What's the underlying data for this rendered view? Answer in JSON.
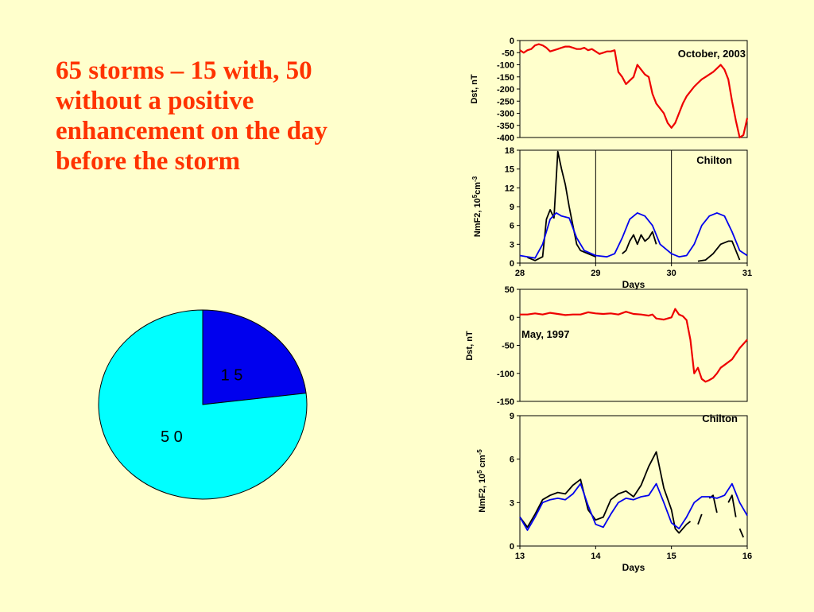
{
  "slide": {
    "headline": "65 storms – 15 with, 50 without a positive enhancement on the day before the storm",
    "colors": {
      "background": "#ffffcc",
      "headline": "#ff3300"
    }
  },
  "chart_data": [
    {
      "type": "pie",
      "labels": [
        "15",
        "50"
      ],
      "values": [
        15,
        50
      ],
      "display_labels": [
        "1 5",
        "5 0"
      ],
      "colors": [
        "#0000ee",
        "#00ffff"
      ]
    },
    {
      "type": "line",
      "title": "October, 2003",
      "xlabel": "",
      "ylabel": "Dst, nT",
      "xlim": [
        28,
        31
      ],
      "ylim": [
        -400,
        0
      ],
      "yticks": [
        0,
        -50,
        -100,
        -150,
        -200,
        -250,
        -300,
        -350,
        -400
      ],
      "series": [
        {
          "color": "#ee0000",
          "points": [
            [
              28.0,
              -40
            ],
            [
              28.05,
              -50
            ],
            [
              28.1,
              -40
            ],
            [
              28.15,
              -35
            ],
            [
              28.2,
              -20
            ],
            [
              28.25,
              -15
            ],
            [
              28.3,
              -20
            ],
            [
              28.35,
              -30
            ],
            [
              28.4,
              -45
            ],
            [
              28.45,
              -40
            ],
            [
              28.5,
              -35
            ],
            [
              28.55,
              -30
            ],
            [
              28.6,
              -25
            ],
            [
              28.65,
              -25
            ],
            [
              28.7,
              -30
            ],
            [
              28.75,
              -35
            ],
            [
              28.8,
              -35
            ],
            [
              28.85,
              -30
            ],
            [
              28.9,
              -40
            ],
            [
              28.95,
              -35
            ],
            [
              29.0,
              -45
            ],
            [
              29.05,
              -55
            ],
            [
              29.1,
              -50
            ],
            [
              29.15,
              -45
            ],
            [
              29.2,
              -45
            ],
            [
              29.25,
              -40
            ],
            [
              29.3,
              -130
            ],
            [
              29.35,
              -150
            ],
            [
              29.4,
              -180
            ],
            [
              29.45,
              -165
            ],
            [
              29.5,
              -150
            ],
            [
              29.55,
              -100
            ],
            [
              29.6,
              -120
            ],
            [
              29.65,
              -140
            ],
            [
              29.7,
              -150
            ],
            [
              29.75,
              -220
            ],
            [
              29.8,
              -260
            ],
            [
              29.85,
              -280
            ],
            [
              29.9,
              -300
            ],
            [
              29.95,
              -340
            ],
            [
              30.0,
              -360
            ],
            [
              30.05,
              -340
            ],
            [
              30.1,
              -300
            ],
            [
              30.15,
              -260
            ],
            [
              30.2,
              -230
            ],
            [
              30.25,
              -210
            ],
            [
              30.3,
              -190
            ],
            [
              30.35,
              -175
            ],
            [
              30.4,
              -160
            ],
            [
              30.45,
              -150
            ],
            [
              30.5,
              -140
            ],
            [
              30.55,
              -130
            ],
            [
              30.6,
              -115
            ],
            [
              30.65,
              -100
            ],
            [
              30.7,
              -120
            ],
            [
              30.75,
              -160
            ],
            [
              30.8,
              -250
            ],
            [
              30.85,
              -330
            ],
            [
              30.9,
              -400
            ],
            [
              30.95,
              -390
            ],
            [
              31.0,
              -320
            ]
          ]
        }
      ]
    },
    {
      "type": "line",
      "title": "Chilton",
      "xlabel": "Days",
      "ylabel": "NmF2, 10^5 cm^-3",
      "xlim": [
        28,
        31
      ],
      "ylim": [
        0,
        18
      ],
      "xticks": [
        28,
        29,
        30,
        31
      ],
      "yticks": [
        0,
        3,
        6,
        9,
        12,
        15,
        18
      ],
      "day_dividers": [
        29,
        30
      ],
      "series": [
        {
          "color": "#000000",
          "segments": [
            [
              [
                28.1,
                0.9
              ],
              [
                28.2,
                0.4
              ],
              [
                28.3,
                1.0
              ],
              [
                28.35,
                7.0
              ],
              [
                28.4,
                8.5
              ],
              [
                28.45,
                7.2
              ],
              [
                28.5,
                17.8
              ],
              [
                28.55,
                15.0
              ],
              [
                28.6,
                12.5
              ],
              [
                28.65,
                9.0
              ],
              [
                28.7,
                6.0
              ],
              [
                28.75,
                3.0
              ],
              [
                28.8,
                2.0
              ],
              [
                28.9,
                1.5
              ],
              [
                29.0,
                1.0
              ]
            ],
            [
              [
                29.35,
                1.5
              ],
              [
                29.4,
                2.0
              ],
              [
                29.45,
                3.5
              ],
              [
                29.5,
                4.5
              ],
              [
                29.55,
                3.0
              ],
              [
                29.6,
                4.5
              ],
              [
                29.65,
                3.5
              ],
              [
                29.7,
                4.0
              ],
              [
                29.75,
                5.0
              ],
              [
                29.8,
                3.0
              ]
            ],
            [
              [
                30.35,
                0.3
              ],
              [
                30.45,
                0.5
              ],
              [
                30.55,
                1.5
              ],
              [
                30.65,
                3.0
              ],
              [
                30.75,
                3.5
              ],
              [
                30.8,
                3.5
              ],
              [
                30.85,
                2.0
              ],
              [
                30.9,
                0.5
              ]
            ]
          ]
        },
        {
          "color": "#0000ee",
          "points": [
            [
              28.0,
              1.2
            ],
            [
              28.1,
              1.0
            ],
            [
              28.2,
              0.8
            ],
            [
              28.3,
              3.0
            ],
            [
              28.4,
              7.0
            ],
            [
              28.48,
              8.0
            ],
            [
              28.55,
              7.5
            ],
            [
              28.65,
              7.2
            ],
            [
              28.75,
              4.0
            ],
            [
              28.85,
              2.0
            ],
            [
              29.0,
              1.2
            ],
            [
              29.15,
              1.0
            ],
            [
              29.25,
              1.5
            ],
            [
              29.35,
              4.0
            ],
            [
              29.45,
              7.0
            ],
            [
              29.55,
              8.0
            ],
            [
              29.65,
              7.5
            ],
            [
              29.75,
              6.0
            ],
            [
              29.85,
              3.0
            ],
            [
              30.0,
              1.5
            ],
            [
              30.1,
              1.0
            ],
            [
              30.2,
              1.2
            ],
            [
              30.3,
              3.0
            ],
            [
              30.4,
              6.0
            ],
            [
              30.5,
              7.5
            ],
            [
              30.6,
              8.0
            ],
            [
              30.7,
              7.5
            ],
            [
              30.8,
              5.0
            ],
            [
              30.9,
              2.0
            ],
            [
              31.0,
              1.2
            ]
          ]
        }
      ]
    },
    {
      "type": "line",
      "title": "May, 1997",
      "xlabel": "",
      "ylabel": "Dst, nT",
      "xlim": [
        13,
        16
      ],
      "ylim": [
        -150,
        50
      ],
      "yticks": [
        50,
        0,
        -50,
        -100,
        -150
      ],
      "series": [
        {
          "color": "#ee0000",
          "points": [
            [
              13.0,
              5
            ],
            [
              13.1,
              5
            ],
            [
              13.2,
              7
            ],
            [
              13.3,
              5
            ],
            [
              13.4,
              8
            ],
            [
              13.5,
              6
            ],
            [
              13.6,
              4
            ],
            [
              13.7,
              5
            ],
            [
              13.8,
              5
            ],
            [
              13.9,
              9
            ],
            [
              14.0,
              7
            ],
            [
              14.1,
              6
            ],
            [
              14.2,
              7
            ],
            [
              14.3,
              5
            ],
            [
              14.4,
              10
            ],
            [
              14.5,
              6
            ],
            [
              14.6,
              5
            ],
            [
              14.7,
              3
            ],
            [
              14.75,
              5
            ],
            [
              14.8,
              -2
            ],
            [
              14.9,
              -4
            ],
            [
              15.0,
              0
            ],
            [
              15.05,
              15
            ],
            [
              15.1,
              5
            ],
            [
              15.15,
              2
            ],
            [
              15.2,
              -5
            ],
            [
              15.25,
              -40
            ],
            [
              15.3,
              -100
            ],
            [
              15.35,
              -90
            ],
            [
              15.4,
              -110
            ],
            [
              15.45,
              -115
            ],
            [
              15.5,
              -112
            ],
            [
              15.55,
              -108
            ],
            [
              15.6,
              -100
            ],
            [
              15.65,
              -90
            ],
            [
              15.7,
              -85
            ],
            [
              15.8,
              -75
            ],
            [
              15.9,
              -55
            ],
            [
              16.0,
              -40
            ]
          ]
        }
      ]
    },
    {
      "type": "line",
      "title": "Chilton",
      "xlabel": "Days",
      "ylabel": "NmF2, 10^5 cm^-5",
      "xlim": [
        13,
        16
      ],
      "ylim": [
        0,
        9
      ],
      "xticks": [
        13,
        14,
        15,
        16
      ],
      "yticks": [
        0,
        3,
        6,
        9
      ],
      "series": [
        {
          "color": "#000000",
          "segments": [
            [
              [
                13.0,
                2.0
              ],
              [
                13.1,
                1.3
              ],
              [
                13.2,
                2.2
              ],
              [
                13.3,
                3.2
              ],
              [
                13.4,
                3.5
              ],
              [
                13.5,
                3.7
              ],
              [
                13.6,
                3.6
              ],
              [
                13.7,
                4.2
              ],
              [
                13.8,
                4.6
              ],
              [
                13.9,
                2.5
              ],
              [
                14.0,
                1.8
              ],
              [
                14.1,
                2.0
              ],
              [
                14.2,
                3.2
              ],
              [
                14.3,
                3.6
              ],
              [
                14.4,
                3.8
              ],
              [
                14.5,
                3.4
              ],
              [
                14.6,
                4.2
              ],
              [
                14.7,
                5.5
              ],
              [
                14.8,
                6.5
              ],
              [
                14.9,
                4.0
              ],
              [
                15.0,
                2.5
              ],
              [
                15.05,
                1.2
              ],
              [
                15.1,
                0.9
              ],
              [
                15.2,
                1.5
              ],
              [
                15.25,
                1.7
              ]
            ],
            [
              [
                15.35,
                1.5
              ],
              [
                15.4,
                2.2
              ]
            ],
            [
              [
                15.5,
                3.3
              ],
              [
                15.55,
                3.5
              ],
              [
                15.6,
                2.3
              ]
            ],
            [
              [
                15.75,
                3.0
              ],
              [
                15.8,
                3.5
              ],
              [
                15.85,
                2.0
              ]
            ],
            [
              [
                15.9,
                1.2
              ],
              [
                15.95,
                0.6
              ]
            ]
          ]
        },
        {
          "color": "#0000ee",
          "points": [
            [
              13.0,
              2.0
            ],
            [
              13.1,
              1.1
            ],
            [
              13.2,
              2.0
            ],
            [
              13.3,
              3.0
            ],
            [
              13.4,
              3.2
            ],
            [
              13.5,
              3.3
            ],
            [
              13.6,
              3.2
            ],
            [
              13.7,
              3.6
            ],
            [
              13.8,
              4.3
            ],
            [
              13.9,
              2.8
            ],
            [
              14.0,
              1.5
            ],
            [
              14.1,
              1.3
            ],
            [
              14.2,
              2.2
            ],
            [
              14.3,
              3.0
            ],
            [
              14.4,
              3.3
            ],
            [
              14.5,
              3.2
            ],
            [
              14.6,
              3.4
            ],
            [
              14.7,
              3.5
            ],
            [
              14.8,
              4.3
            ],
            [
              14.9,
              3.0
            ],
            [
              15.0,
              1.6
            ],
            [
              15.1,
              1.2
            ],
            [
              15.2,
              2.0
            ],
            [
              15.3,
              3.0
            ],
            [
              15.4,
              3.4
            ],
            [
              15.5,
              3.4
            ],
            [
              15.6,
              3.3
            ],
            [
              15.7,
              3.5
            ],
            [
              15.8,
              4.3
            ],
            [
              15.9,
              3.0
            ],
            [
              16.0,
              2.1
            ]
          ]
        }
      ]
    }
  ]
}
